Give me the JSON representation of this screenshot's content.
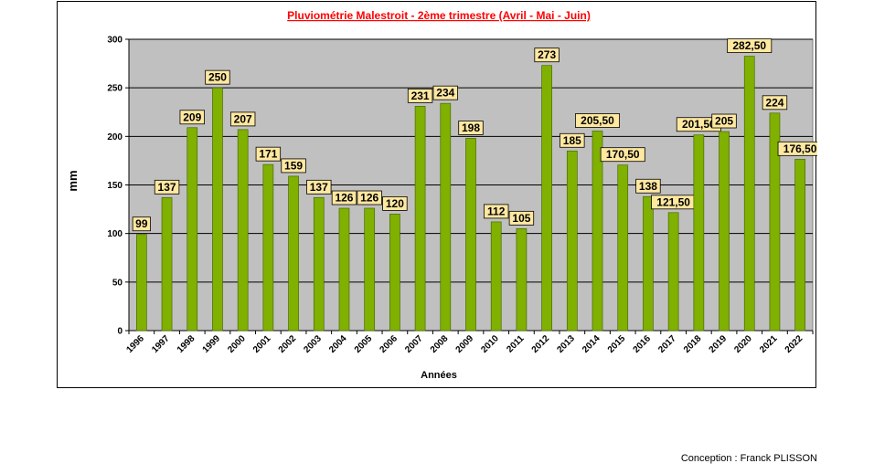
{
  "credit": "Conception : Franck PLISSON",
  "colors": {
    "plot_bg": "#c0c0c0",
    "bar": "#80b000",
    "bar_border": "#4a6a00",
    "label_bg": "#ffe8a0",
    "title": "#ff0000"
  },
  "chart_data": {
    "type": "bar",
    "title": "Pluviométrie Malestroit - 2ème trimestre (Avril - Mai - Juin)",
    "xlabel": "Années",
    "ylabel": "mm",
    "ylim": [
      0,
      300
    ],
    "yticks": [
      0,
      50,
      100,
      150,
      200,
      250,
      300
    ],
    "grid": true,
    "legend": "none",
    "categories": [
      "1996",
      "1997",
      "1998",
      "1999",
      "2000",
      "2001",
      "2002",
      "2003",
      "2004",
      "2005",
      "2006",
      "2007",
      "2008",
      "2009",
      "2010",
      "2011",
      "2012",
      "2013",
      "2014",
      "2015",
      "2016",
      "2017",
      "2018",
      "2019",
      "2020",
      "2021",
      "2022"
    ],
    "values": [
      99,
      137,
      209,
      250,
      207,
      171,
      159,
      137,
      126,
      126,
      120,
      231,
      234,
      198,
      112,
      105,
      273,
      185,
      205.5,
      170.5,
      138,
      121.5,
      201.5,
      205,
      282.5,
      224,
      176.5
    ],
    "data_labels": [
      "99",
      "137",
      "209",
      "250",
      "207",
      "171",
      "159",
      "137",
      "126",
      "126",
      "120",
      "231",
      "234",
      "198",
      "112",
      "105",
      "273",
      "185",
      "205,50",
      "170,50",
      "138",
      "121,50",
      "201,50",
      "205",
      "282,50",
      "224",
      "176,50"
    ]
  }
}
